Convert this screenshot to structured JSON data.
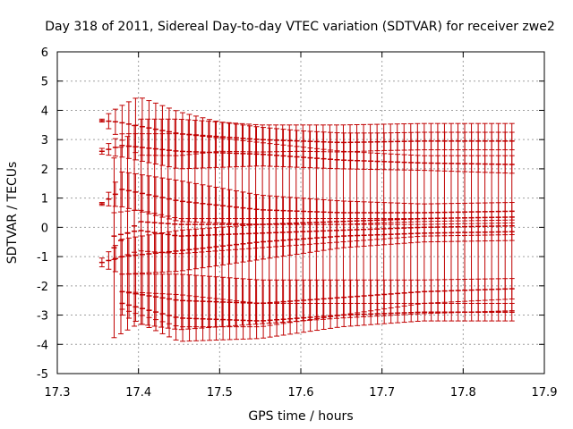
{
  "chart_data": {
    "type": "scatter",
    "title": "Day 318 of 2011, Sidereal Day-to-day VTEC variation (SDTVAR) for receiver zwe2",
    "xlabel": "GPS time / hours",
    "ylabel": "SDTVAR / TECUs",
    "xlim": [
      17.3,
      17.9
    ],
    "ylim": [
      -5,
      6
    ],
    "xticks": [
      "17.3",
      "17.4",
      "17.5",
      "17.6",
      "17.7",
      "17.8",
      "17.9"
    ],
    "yticks": [
      "-5",
      "-4",
      "-3",
      "-2",
      "-1",
      "0",
      "1",
      "2",
      "3",
      "4",
      "5",
      "6"
    ],
    "grid": true,
    "legend": "none",
    "series_color": "#c00000",
    "error_bars": true,
    "series": [
      {
        "center": [
          [
            17.355,
            3.65
          ],
          [
            17.375,
            3.6
          ],
          [
            17.45,
            3.2
          ],
          [
            17.55,
            3.0
          ],
          [
            17.65,
            2.9
          ],
          [
            17.75,
            2.95
          ],
          [
            17.86,
            2.95
          ]
        ],
        "err": [
          [
            17.355,
            0.05
          ],
          [
            17.365,
            0.3
          ],
          [
            17.4,
            1.0
          ],
          [
            17.5,
            0.5
          ],
          [
            17.6,
            0.35
          ],
          [
            17.7,
            0.3
          ],
          [
            17.86,
            0.3
          ]
        ]
      },
      {
        "center": [
          [
            17.355,
            2.6
          ],
          [
            17.38,
            2.8
          ],
          [
            17.45,
            2.6
          ],
          [
            17.55,
            2.5
          ],
          [
            17.65,
            2.3
          ],
          [
            17.75,
            2.2
          ],
          [
            17.86,
            2.15
          ]
        ],
        "err": [
          [
            17.355,
            0.1
          ],
          [
            17.38,
            0.4
          ],
          [
            17.45,
            0.6
          ],
          [
            17.55,
            0.4
          ],
          [
            17.65,
            0.3
          ],
          [
            17.75,
            0.25
          ],
          [
            17.86,
            0.3
          ]
        ]
      },
      {
        "center": [
          [
            17.355,
            0.8
          ],
          [
            17.38,
            1.3
          ],
          [
            17.45,
            0.9
          ],
          [
            17.55,
            0.6
          ],
          [
            17.65,
            0.5
          ],
          [
            17.75,
            0.5
          ],
          [
            17.86,
            0.55
          ]
        ],
        "err": [
          [
            17.355,
            0.05
          ],
          [
            17.38,
            0.6
          ],
          [
            17.45,
            0.7
          ],
          [
            17.55,
            0.5
          ],
          [
            17.65,
            0.4
          ],
          [
            17.75,
            0.3
          ],
          [
            17.86,
            0.3
          ]
        ]
      },
      {
        "center": [
          [
            17.37,
            -0.7
          ],
          [
            17.4,
            0.2
          ],
          [
            17.45,
            0.1
          ],
          [
            17.55,
            0.1
          ],
          [
            17.65,
            0.2
          ],
          [
            17.75,
            0.3
          ],
          [
            17.86,
            0.35
          ]
        ],
        "err": [
          [
            17.365,
            3.0
          ],
          [
            17.4,
            3.5
          ],
          [
            17.45,
            3.6
          ],
          [
            17.55,
            3.4
          ],
          [
            17.65,
            3.3
          ],
          [
            17.75,
            3.25
          ],
          [
            17.86,
            3.2
          ]
        ]
      },
      {
        "center": [
          [
            17.37,
            -0.3
          ],
          [
            17.4,
            -0.1
          ],
          [
            17.45,
            -0.3
          ],
          [
            17.55,
            -0.2
          ],
          [
            17.65,
            -0.1
          ],
          [
            17.75,
            0.0
          ],
          [
            17.86,
            0.05
          ]
        ],
        "err": [
          [
            17.37,
            0.8
          ],
          [
            17.4,
            0.7
          ],
          [
            17.45,
            0.6
          ],
          [
            17.55,
            0.5
          ],
          [
            17.65,
            0.4
          ],
          [
            17.75,
            0.3
          ],
          [
            17.86,
            0.3
          ]
        ]
      },
      {
        "center": [
          [
            17.355,
            -1.2
          ],
          [
            17.38,
            -1.0
          ],
          [
            17.45,
            -0.8
          ],
          [
            17.55,
            -0.5
          ],
          [
            17.65,
            -0.3
          ],
          [
            17.75,
            -0.2
          ],
          [
            17.86,
            -0.15
          ]
        ],
        "err": [
          [
            17.355,
            0.15
          ],
          [
            17.38,
            0.6
          ],
          [
            17.45,
            0.7
          ],
          [
            17.55,
            0.6
          ],
          [
            17.65,
            0.4
          ],
          [
            17.75,
            0.3
          ],
          [
            17.86,
            0.3
          ]
        ]
      },
      {
        "center": [
          [
            17.38,
            -2.2
          ],
          [
            17.45,
            -2.5
          ],
          [
            17.55,
            -2.6
          ],
          [
            17.65,
            -2.4
          ],
          [
            17.75,
            -2.2
          ],
          [
            17.86,
            -2.1
          ]
        ],
        "err": [
          [
            17.38,
            0.6
          ],
          [
            17.45,
            0.9
          ],
          [
            17.55,
            0.8
          ],
          [
            17.65,
            0.6
          ],
          [
            17.75,
            0.4
          ],
          [
            17.86,
            0.35
          ]
        ]
      },
      {
        "center": [
          [
            17.38,
            -2.6
          ],
          [
            17.45,
            -3.1
          ],
          [
            17.55,
            -3.2
          ],
          [
            17.65,
            -3.0
          ],
          [
            17.75,
            -2.9
          ],
          [
            17.86,
            -2.9
          ]
        ],
        "err": [
          [
            17.38,
            0.4
          ],
          [
            17.45,
            0.8
          ],
          [
            17.55,
            0.6
          ],
          [
            17.65,
            0.4
          ],
          [
            17.75,
            0.3
          ],
          [
            17.86,
            0.3
          ]
        ]
      }
    ]
  }
}
